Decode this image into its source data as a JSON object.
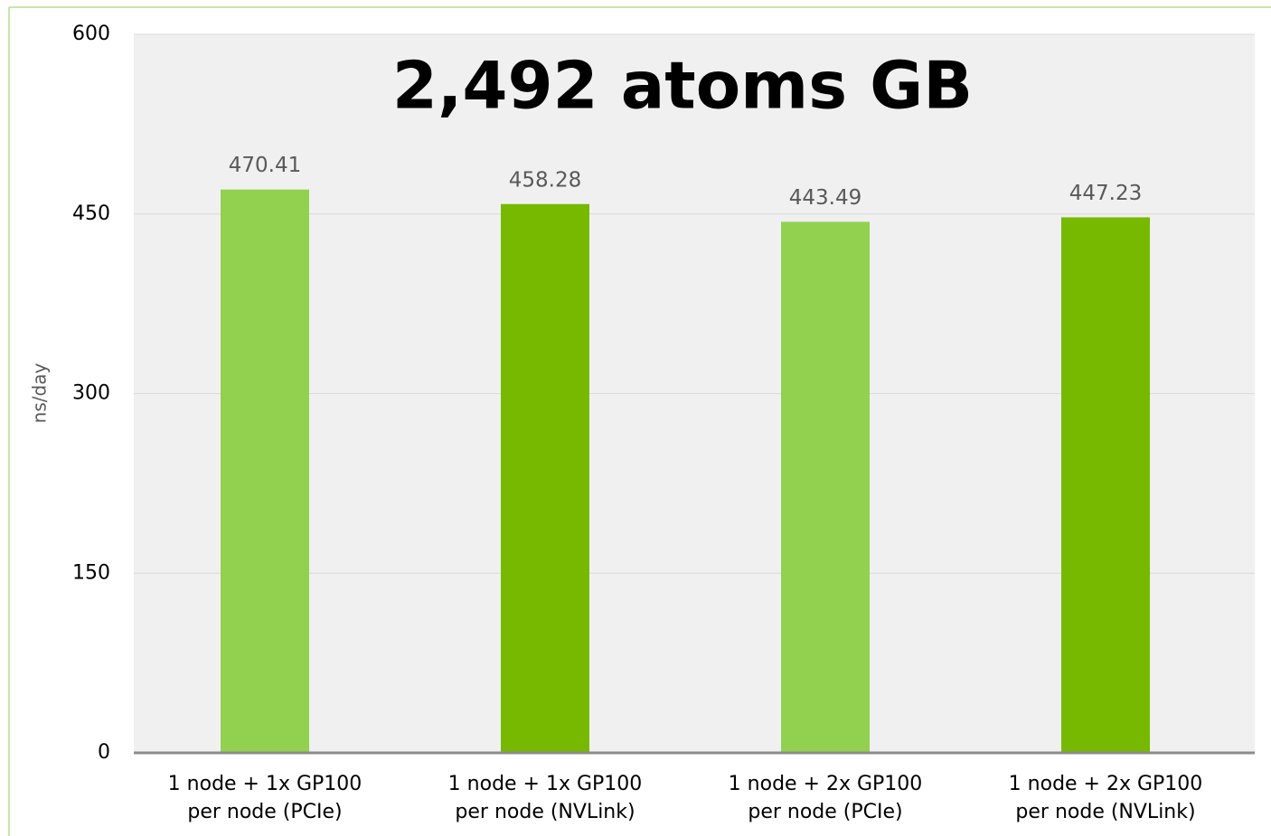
{
  "chart_data": {
    "type": "bar",
    "title": "2,492 atoms GB",
    "y_label": "ns/day",
    "categories": [
      [
        "1 node + 1x GP100",
        "per node (PCIe)"
      ],
      [
        "1 node + 1x GP100",
        "per node (NVLink)"
      ],
      [
        "1 node + 2x GP100",
        "per node (PCIe)"
      ],
      [
        "1 node + 2x GP100",
        "per node (NVLink)"
      ]
    ],
    "values": [
      470.41,
      458.28,
      443.49,
      447.23
    ],
    "colors": [
      "#92d050",
      "#76b900",
      "#92d050",
      "#76b900"
    ],
    "ylim": [
      0,
      600
    ],
    "yticks": [
      0,
      150,
      300,
      450,
      600
    ],
    "grid": true
  }
}
